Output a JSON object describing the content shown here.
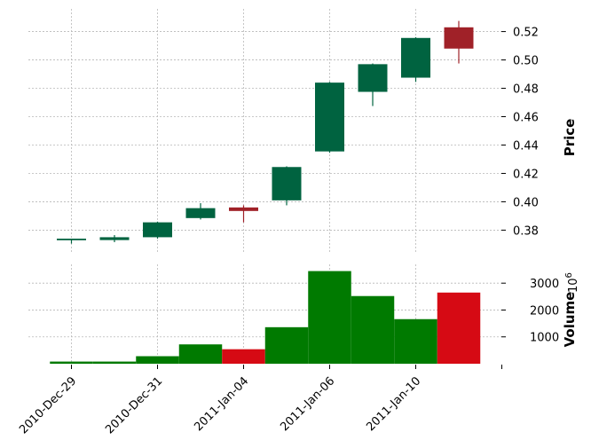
{
  "chart_data": {
    "type": "candlestick",
    "x_tick_labels": [
      "2010-Dec-29",
      "2010-Dec-31",
      "2011-Jan-04",
      "2011-Jan-06",
      "2011-Jan-10"
    ],
    "price": {
      "ylabel": "Price",
      "yticks": [
        "0.38",
        "0.40",
        "0.42",
        "0.44",
        "0.46",
        "0.48",
        "0.50",
        "0.52"
      ],
      "ylim": [
        0.364,
        0.536
      ],
      "candles": [
        {
          "open": 0.3735,
          "high": 0.374,
          "low": 0.3705,
          "close": 0.374
        },
        {
          "open": 0.373,
          "high": 0.3765,
          "low": 0.3715,
          "close": 0.375
        },
        {
          "open": 0.375,
          "high": 0.386,
          "low": 0.374,
          "close": 0.3855
        },
        {
          "open": 0.3885,
          "high": 0.399,
          "low": 0.3875,
          "close": 0.3955
        },
        {
          "open": 0.396,
          "high": 0.3975,
          "low": 0.3855,
          "close": 0.3935
        },
        {
          "open": 0.401,
          "high": 0.425,
          "low": 0.3975,
          "close": 0.4245
        },
        {
          "open": 0.4355,
          "high": 0.4845,
          "low": 0.4345,
          "close": 0.484
        },
        {
          "open": 0.4775,
          "high": 0.4975,
          "low": 0.4675,
          "close": 0.497
        },
        {
          "open": 0.4875,
          "high": 0.516,
          "low": 0.4845,
          "close": 0.5155
        },
        {
          "open": 0.523,
          "high": 0.5275,
          "low": 0.4975,
          "close": 0.508
        }
      ]
    },
    "volume": {
      "ylabel": "Volume",
      "multiplier": "10",
      "multiplier_exp": "6",
      "yticks": [
        "1000",
        "2000",
        "3000"
      ],
      "ylim": [
        0,
        3700
      ],
      "values": [
        80,
        80,
        280,
        720,
        540,
        1360,
        3450,
        2520,
        1660,
        2650
      ]
    },
    "colors": {
      "up_candle": "#006340",
      "down_candle": "#a02128",
      "up_volume": "#007a00",
      "down_volume": "#d60a14",
      "grid": "#b8b8b8"
    },
    "grid": true
  }
}
